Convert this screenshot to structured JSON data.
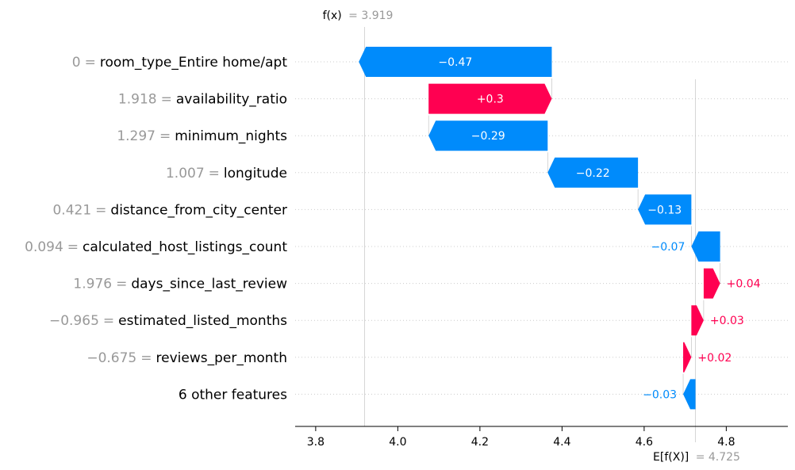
{
  "chart_data": {
    "type": "waterfall",
    "fx_label": "f(x)",
    "fx_value": "= 3.919",
    "base_label": "E[f(X)]",
    "base_value": "= 4.725",
    "base": 4.725,
    "fx": 3.919,
    "xlim": [
      3.75,
      4.95
    ],
    "xticks": [
      "3.8",
      "4.0",
      "4.2",
      "4.4",
      "4.6",
      "4.8"
    ],
    "colors": {
      "positive": "#ff0051",
      "negative": "#008bfb"
    },
    "features": [
      {
        "value": "0",
        "name": "room_type_Entire home/apt",
        "shap": -0.47,
        "text": "−0.47",
        "label_inside": true
      },
      {
        "value": "1.918",
        "name": "availability_ratio",
        "shap": 0.3,
        "text": "+0.3",
        "label_inside": true
      },
      {
        "value": "1.297",
        "name": "minimum_nights",
        "shap": -0.29,
        "text": "−0.29",
        "label_inside": true
      },
      {
        "value": "1.007",
        "name": "longitude",
        "shap": -0.22,
        "text": "−0.22",
        "label_inside": true
      },
      {
        "value": "0.421",
        "name": "distance_from_city_center",
        "shap": -0.13,
        "text": "−0.13",
        "label_inside": true
      },
      {
        "value": "0.094",
        "name": "calculated_host_listings_count",
        "shap": -0.07,
        "text": "−0.07",
        "label_inside": false
      },
      {
        "value": "1.976",
        "name": "days_since_last_review",
        "shap": 0.04,
        "text": "+0.04",
        "label_inside": false
      },
      {
        "value": "−0.965",
        "name": "estimated_listed_months",
        "shap": 0.03,
        "text": "+0.03",
        "label_inside": false
      },
      {
        "value": "−0.675",
        "name": "reviews_per_month",
        "shap": 0.02,
        "text": "+0.02",
        "label_inside": false
      },
      {
        "value": "",
        "name": "6 other features",
        "shap": -0.03,
        "text": "−0.03",
        "label_inside": false
      }
    ]
  }
}
